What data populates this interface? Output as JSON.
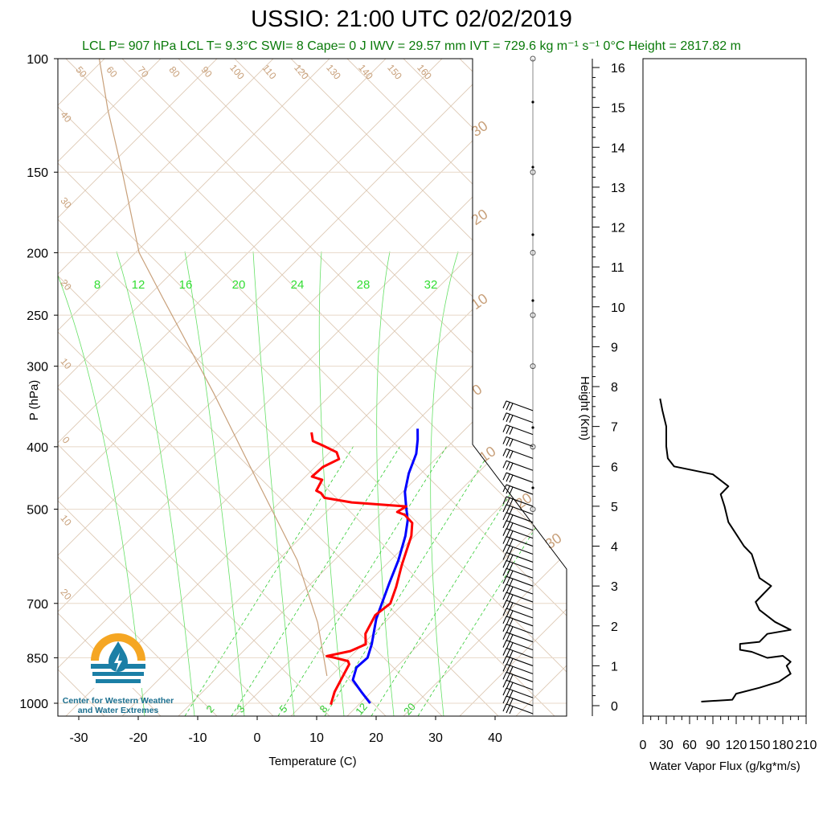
{
  "title": "USSIO: 21:00 UTC 02/02/2019",
  "subtitle": "LCL P= 907 hPa  LCL T= 9.3°C  SWI= 8  Cape= 0 J  IWV = 29.57 mm  IVT = 729.6 kg m⁻¹ s⁻¹  0°C Height = 2817.82 m",
  "logo": {
    "line1": "Center for Western Weather",
    "line2": "and Water Extremes",
    "colors": {
      "sun": "#f5a623",
      "water": "#1b7fa6"
    }
  },
  "chart_data": [
    {
      "type": "line",
      "subtype": "skew-t log-p",
      "xlabel": "Temperature (C)",
      "ylabel": "P (hPa)",
      "xlim": [
        -34,
        52
      ],
      "ylim": [
        1040,
        100
      ],
      "y_scale": "log",
      "x_ticks": [
        -30,
        -20,
        -10,
        0,
        10,
        20,
        30,
        40
      ],
      "y_ticks": [
        100,
        150,
        200,
        250,
        300,
        400,
        500,
        700,
        850,
        1000
      ],
      "series": [
        {
          "color": "#0000ff",
          "points": [
            [
              19,
              1000
            ],
            [
              16.5,
              960
            ],
            [
              14,
              920
            ],
            [
              13.5,
              880
            ],
            [
              14.5,
              850
            ],
            [
              14,
              810
            ],
            [
              12.5,
              740
            ],
            [
              11.5,
              650
            ],
            [
              11,
              600
            ],
            [
              10,
              550
            ],
            [
              9,
              520
            ],
            [
              7.5,
              495
            ],
            [
              6,
              470
            ],
            [
              5,
              440
            ],
            [
              4.5,
              410
            ],
            [
              3.5,
              390
            ],
            [
              2.5,
              375
            ]
          ]
        },
        {
          "color": "#ff0000",
          "points": [
            [
              12.5,
              1005
            ],
            [
              12,
              960
            ],
            [
              12,
              900
            ],
            [
              12,
              870
            ],
            [
              11.5,
              860
            ],
            [
              9,
              850
            ],
            [
              7.5,
              845
            ],
            [
              11,
              830
            ],
            [
              13,
              810
            ],
            [
              12,
              780
            ],
            [
              12,
              730
            ],
            [
              13.5,
              700
            ],
            [
              13,
              660
            ],
            [
              12,
              610
            ],
            [
              11,
              550
            ],
            [
              10,
              525
            ],
            [
              8,
              510
            ],
            [
              6.5,
              505
            ],
            [
              7.5,
              495
            ],
            [
              -2,
              488
            ],
            [
              -7,
              480
            ],
            [
              -8,
              472
            ],
            [
              -9,
              468
            ],
            [
              -9,
              450
            ],
            [
              -11,
              445
            ],
            [
              -10,
              430
            ],
            [
              -8,
              418
            ],
            [
              -9,
              408
            ],
            [
              -12,
              398
            ],
            [
              -14,
              392
            ],
            [
              -15,
              380
            ]
          ]
        },
        {
          "color": "#c8a07a",
          "points": [
            [
              9.3,
              907
            ],
            [
              3,
              750
            ],
            [
              -6,
              600
            ],
            [
              -20,
              450
            ],
            [
              -35,
              330
            ],
            [
              -52,
              235
            ],
            [
              -60,
              200
            ],
            [
              -70,
              150
            ],
            [
              -78,
              120
            ],
            [
              -84,
              100
            ]
          ]
        }
      ],
      "dry_adiabat_labels": [
        "50",
        "60",
        "70",
        "80",
        "90",
        "100",
        "110",
        "120",
        "130",
        "140",
        "150",
        "160",
        "40",
        "30",
        "20",
        "10",
        "0",
        "10",
        "20",
        "30",
        "20",
        "10",
        "0",
        "10",
        "20",
        "30"
      ],
      "saturation_ratio_labels": [
        "8",
        "12",
        "16",
        "20",
        "24",
        "28",
        "32"
      ],
      "moist_adiabat_labels": [
        "2",
        "3",
        "5",
        "8",
        "12",
        "20"
      ]
    },
    {
      "type": "line",
      "ylabel": "Height (Km)",
      "ylim": [
        -0.2,
        16.5
      ],
      "y_ticks": [
        0,
        1,
        2,
        3,
        4,
        5,
        6,
        7,
        8,
        9,
        10,
        11,
        12,
        13,
        14,
        15,
        16
      ],
      "wind_barbs": {
        "heights_km": [
          0.0,
          0.2,
          0.4,
          0.6,
          0.8,
          1.0,
          1.2,
          1.4,
          1.6,
          1.8,
          2.0,
          2.2,
          2.4,
          2.6,
          2.8,
          3.0,
          3.2,
          3.4,
          3.6,
          3.8,
          4.0,
          4.2,
          4.4,
          4.6,
          4.8,
          5.0,
          5.2,
          5.5,
          5.8,
          6.1,
          6.4,
          6.7,
          7.0,
          7.3,
          7.6
        ]
      }
    },
    {
      "type": "line",
      "xlabel": "Water Vapor Flux (g/kg*m/s)",
      "xlim": [
        0,
        210
      ],
      "ylim": [
        -0.2,
        16.5
      ],
      "x_ticks": [
        0,
        30,
        60,
        90,
        120,
        150,
        180,
        210
      ],
      "points": [
        [
          75,
          0.1
        ],
        [
          115,
          0.15
        ],
        [
          120,
          0.3
        ],
        [
          150,
          0.45
        ],
        [
          175,
          0.6
        ],
        [
          190,
          0.8
        ],
        [
          185,
          1.0
        ],
        [
          190,
          1.1
        ],
        [
          180,
          1.25
        ],
        [
          160,
          1.2
        ],
        [
          140,
          1.35
        ],
        [
          125,
          1.4
        ],
        [
          125,
          1.55
        ],
        [
          150,
          1.6
        ],
        [
          160,
          1.8
        ],
        [
          190,
          1.9
        ],
        [
          170,
          2.1
        ],
        [
          150,
          2.4
        ],
        [
          145,
          2.6
        ],
        [
          155,
          2.8
        ],
        [
          165,
          3.0
        ],
        [
          150,
          3.2
        ],
        [
          145,
          3.5
        ],
        [
          140,
          3.8
        ],
        [
          130,
          4.0
        ],
        [
          120,
          4.3
        ],
        [
          110,
          4.6
        ],
        [
          105,
          5.0
        ],
        [
          100,
          5.3
        ],
        [
          110,
          5.5
        ],
        [
          90,
          5.8
        ],
        [
          40,
          6.0
        ],
        [
          32,
          6.2
        ],
        [
          30,
          6.5
        ],
        [
          30,
          7.0
        ],
        [
          25,
          7.4
        ],
        [
          22,
          7.7
        ]
      ]
    }
  ]
}
